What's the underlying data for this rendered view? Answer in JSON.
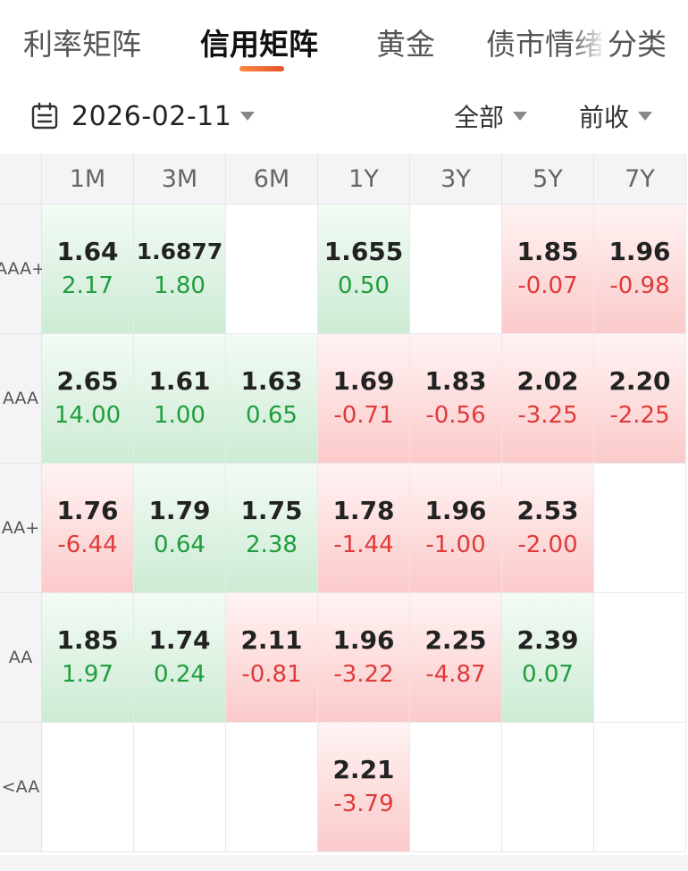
{
  "tabs": [
    {
      "label": "利率矩阵"
    },
    {
      "label": "信用矩阵"
    },
    {
      "label": "黄金"
    },
    {
      "label": "债市情绪"
    },
    {
      "label": "分类"
    }
  ],
  "filters": {
    "date": "2026-02-11",
    "scope": "全部",
    "compare": "前收"
  },
  "colors": {
    "up": "#e03a3a",
    "down": "#1f9e3d",
    "accent": "#ff6a2b"
  },
  "icons": {
    "date": "calendar-icon",
    "dropdown": "caret-down-icon"
  },
  "matrix": {
    "columns": [
      "1M",
      "3M",
      "6M",
      "1Y",
      "3Y",
      "5Y",
      "7Y"
    ],
    "rows": [
      {
        "label": "AAA+",
        "cells": [
          {
            "value": "1.64",
            "change": "2.17",
            "trend": "green"
          },
          {
            "value": "1.6877",
            "change": "1.80",
            "trend": "green"
          },
          null,
          {
            "value": "1.655",
            "change": "0.50",
            "trend": "green"
          },
          null,
          {
            "value": "1.85",
            "change": "-0.07",
            "trend": "red"
          },
          {
            "value": "1.96",
            "change": "-0.98",
            "trend": "red"
          }
        ]
      },
      {
        "label": "AAA",
        "cells": [
          {
            "value": "2.65",
            "change": "14.00",
            "trend": "green"
          },
          {
            "value": "1.61",
            "change": "1.00",
            "trend": "green"
          },
          {
            "value": "1.63",
            "change": "0.65",
            "trend": "green"
          },
          {
            "value": "1.69",
            "change": "-0.71",
            "trend": "red"
          },
          {
            "value": "1.83",
            "change": "-0.56",
            "trend": "red"
          },
          {
            "value": "2.02",
            "change": "-3.25",
            "trend": "red"
          },
          {
            "value": "2.20",
            "change": "-2.25",
            "trend": "red"
          }
        ]
      },
      {
        "label": "AA+",
        "cells": [
          {
            "value": "1.76",
            "change": "-6.44",
            "trend": "red"
          },
          {
            "value": "1.79",
            "change": "0.64",
            "trend": "green"
          },
          {
            "value": "1.75",
            "change": "2.38",
            "trend": "green"
          },
          {
            "value": "1.78",
            "change": "-1.44",
            "trend": "red"
          },
          {
            "value": "1.96",
            "change": "-1.00",
            "trend": "red"
          },
          {
            "value": "2.53",
            "change": "-2.00",
            "trend": "red"
          },
          null
        ]
      },
      {
        "label": "AA",
        "cells": [
          {
            "value": "1.85",
            "change": "1.97",
            "trend": "green"
          },
          {
            "value": "1.74",
            "change": "0.24",
            "trend": "green"
          },
          {
            "value": "2.11",
            "change": "-0.81",
            "trend": "red"
          },
          {
            "value": "1.96",
            "change": "-3.22",
            "trend": "red"
          },
          {
            "value": "2.25",
            "change": "-4.87",
            "trend": "red"
          },
          {
            "value": "2.39",
            "change": "0.07",
            "trend": "green"
          },
          null
        ]
      },
      {
        "label": "<AA",
        "cells": [
          null,
          null,
          null,
          {
            "value": "2.21",
            "change": "-3.79",
            "trend": "red"
          },
          null,
          null,
          null
        ]
      }
    ]
  }
}
